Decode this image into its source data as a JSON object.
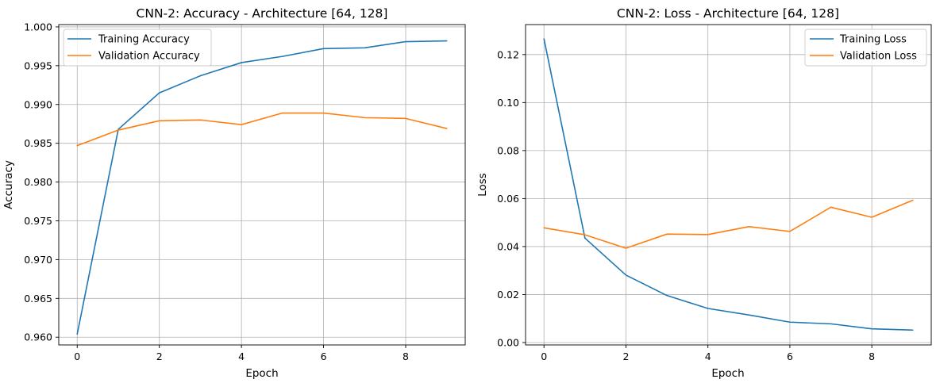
{
  "colors": {
    "train": "#1f77b4",
    "val": "#ff7f0e"
  },
  "chart_data": [
    {
      "type": "line",
      "title": "CNN-2: Accuracy - Architecture [64, 128]",
      "xlabel": "Epoch",
      "ylabel": "Accuracy",
      "x": [
        0,
        1,
        2,
        3,
        4,
        5,
        6,
        7,
        8,
        9
      ],
      "xlim": [
        -0.45,
        9.45
      ],
      "ylim": [
        0.959,
        1.0003
      ],
      "xticks": [
        0,
        2,
        4,
        6,
        8
      ],
      "yticks": [
        0.96,
        0.965,
        0.97,
        0.975,
        0.98,
        0.985,
        0.99,
        0.995,
        1.0
      ],
      "ytick_labels": [
        "0.960",
        "0.965",
        "0.970",
        "0.975",
        "0.980",
        "0.985",
        "0.990",
        "0.995",
        "1.000"
      ],
      "grid": true,
      "legend_position": "upper-left",
      "series": [
        {
          "name": "Training Accuracy",
          "color": "#1f77b4",
          "values": [
            0.9604,
            0.9868,
            0.9915,
            0.9937,
            0.9954,
            0.9962,
            0.9972,
            0.9973,
            0.9981,
            0.9982
          ]
        },
        {
          "name": "Validation Accuracy",
          "color": "#ff7f0e",
          "values": [
            0.9847,
            0.9867,
            0.9879,
            0.988,
            0.9874,
            0.9889,
            0.9889,
            0.9883,
            0.9882,
            0.9869
          ]
        }
      ]
    },
    {
      "type": "line",
      "title": "CNN-2: Loss - Architecture [64, 128]",
      "xlabel": "Epoch",
      "ylabel": "Loss",
      "x": [
        0,
        1,
        2,
        3,
        4,
        5,
        6,
        7,
        8,
        9
      ],
      "xlim": [
        -0.45,
        9.45
      ],
      "ylim": [
        -0.001,
        0.1325
      ],
      "xticks": [
        0,
        2,
        4,
        6,
        8
      ],
      "yticks": [
        0.0,
        0.02,
        0.04,
        0.06,
        0.08,
        0.1,
        0.12
      ],
      "ytick_labels": [
        "0.00",
        "0.02",
        "0.04",
        "0.06",
        "0.08",
        "0.10",
        "0.12"
      ],
      "grid": true,
      "legend_position": "upper-right",
      "series": [
        {
          "name": "Training Loss",
          "color": "#1f77b4",
          "values": [
            0.1265,
            0.0435,
            0.0281,
            0.0196,
            0.0142,
            0.0115,
            0.0085,
            0.0078,
            0.0057,
            0.0052
          ]
        },
        {
          "name": "Validation Loss",
          "color": "#ff7f0e",
          "values": [
            0.0478,
            0.0449,
            0.0393,
            0.0452,
            0.045,
            0.0483,
            0.0463,
            0.0564,
            0.0522,
            0.0593
          ]
        }
      ]
    }
  ]
}
